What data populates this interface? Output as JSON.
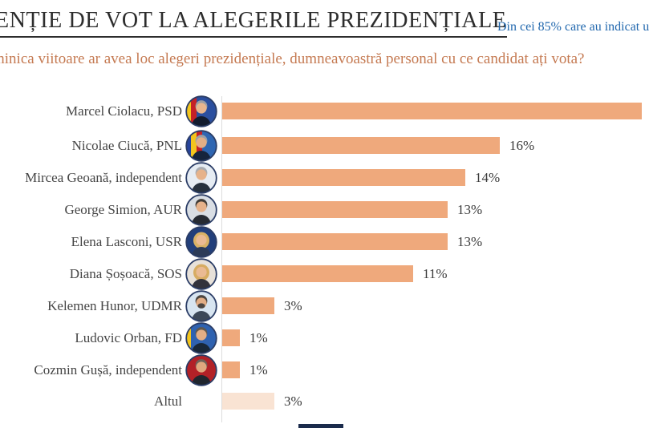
{
  "page": {
    "title": "ENȚIE DE VOT LA ALEGERILE PREZIDENȚIALE",
    "note": "Din cei 85% care au indicat u",
    "question": "minica viitoare ar avea loc alegeri prezidențiale, dumneavoastră personal cu ce candidat ați vota?",
    "footer_mark_color": "#1b2b4c"
  },
  "chart_data": {
    "type": "bar",
    "orientation": "horizontal",
    "title": "ENȚIE DE VOT LA ALEGERILE PREZIDENȚIALE",
    "subtitle": "minica viitoare ar avea loc alegeri prezidențiale, dumneavoastră personal cu ce candidat ați vota?",
    "categories": [
      "Marcel Ciolacu, PSD",
      "Nicolae Ciucă, PNL",
      "Mircea Geoană, independent",
      "George Simion, AUR",
      "Elena Lasconi, USR",
      "Diana Șoșoacă, SOS",
      "Kelemen Hunor, UDMR",
      "Ludovic Orban, FD",
      "Cozmin Gușă, independent",
      "Altul"
    ],
    "values": [
      null,
      16,
      14,
      13,
      13,
      11,
      3,
      1,
      1,
      3
    ],
    "value_labels": [
      "",
      "16%",
      "14%",
      "13%",
      "13%",
      "11%",
      "3%",
      "1%",
      "1%",
      "3%"
    ],
    "first_bar_clipped_at_right_edge": true,
    "bar_color": "#efa97c",
    "muted_bar_color": "#f9e3d3",
    "axis_color": "#dcdcdc",
    "grid": false,
    "legend": false
  },
  "avatars": [
    {
      "bg": "#2b4f9f",
      "stripes": [
        "#f3c51d",
        "#c52026"
      ],
      "hair": "#9b9ea4",
      "skin": "#e9b68e",
      "suit": "#131c2e"
    },
    {
      "bg": "#2f66b2",
      "stripes": [
        "#27449c",
        "#f3c51d",
        "#c52026"
      ],
      "hair": "#9aa0a8",
      "skin": "#e3ae85",
      "suit": "#16243c"
    },
    {
      "bg": "#e6ecf3",
      "stripes": [],
      "hair": "#a9acb1",
      "skin": "#e6b28a",
      "suit": "#27313d"
    },
    {
      "bg": "#d9dee4",
      "stripes": [],
      "hair": "#403c37",
      "skin": "#e6b28a",
      "suit": "#262b33"
    },
    {
      "bg": "#223f7b",
      "stripes": [],
      "hair": "#d9b266",
      "skin": "#eaba93",
      "suit": "#2c3b57",
      "long_hair": true
    },
    {
      "bg": "#e7e1d9",
      "stripes": [],
      "hair": "#d7ac62",
      "skin": "#eaba93",
      "suit": "#33333c",
      "long_hair": true
    },
    {
      "bg": "#d8e5f0",
      "stripes": [],
      "hair": "#4c4641",
      "skin": "#e3ae85",
      "suit": "#3c4857",
      "beard": true
    },
    {
      "bg": "#2f62b0",
      "stripes": [
        "#f3c51d"
      ],
      "hair": "#5e5852",
      "skin": "#e3ae85",
      "suit": "#192839"
    },
    {
      "bg": "#b22127",
      "stripes": [],
      "hair": "#6f6359",
      "skin": "#e0a87e",
      "suit": "#20262e"
    },
    null
  ]
}
